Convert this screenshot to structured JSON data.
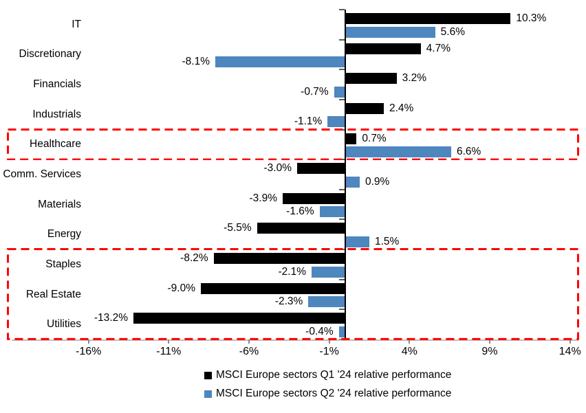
{
  "chart_data": {
    "type": "bar",
    "orientation": "horizontal",
    "title": "",
    "xlabel": "",
    "ylabel": "",
    "grid": false,
    "legend_position": "bottom",
    "categories": [
      "IT",
      "Discretionary",
      "Financials",
      "Industrials",
      "Healthcare",
      "Comm. Services",
      "Materials",
      "Energy",
      "Staples",
      "Real Estate",
      "Utilities"
    ],
    "series": [
      {
        "name": "MSCI Europe sectors Q1 '24 relative performance",
        "color": "#000000",
        "values": [
          10.3,
          4.7,
          3.2,
          2.4,
          0.7,
          -3.0,
          -3.9,
          -5.5,
          -8.2,
          -9.0,
          -13.2
        ]
      },
      {
        "name": "MSCI Europe sectors Q2 '24 relative performance",
        "color": "#4E86BE",
        "values": [
          5.6,
          -8.1,
          -0.7,
          -1.1,
          6.6,
          0.9,
          -1.6,
          1.5,
          -2.1,
          -2.3,
          -0.4
        ]
      }
    ],
    "value_label_suffix": "%",
    "value_label_decimals": 1,
    "x_ticks": [
      {
        "value": -16,
        "label": "-16%"
      },
      {
        "value": -11,
        "label": "-11%"
      },
      {
        "value": -6,
        "label": "-6%"
      },
      {
        "value": -1,
        "label": "-1%"
      },
      {
        "value": 4,
        "label": "4%"
      },
      {
        "value": 9,
        "label": "9%"
      },
      {
        "value": 14,
        "label": "14%"
      }
    ],
    "xlim": [
      -17.5,
      14.6
    ],
    "highlights": [
      {
        "from": "Healthcare",
        "to": "Healthcare",
        "color": "#FF0000"
      },
      {
        "from": "Staples",
        "to": "Utilities",
        "color": "#FF0000"
      }
    ]
  }
}
